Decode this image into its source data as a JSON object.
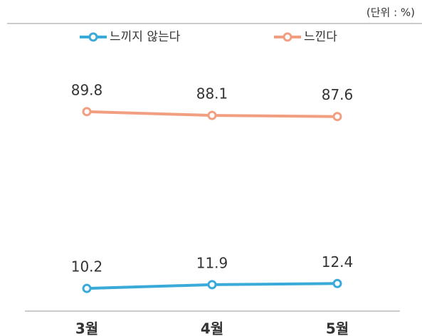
{
  "chart_data": {
    "type": "line",
    "unit_label": "(단위 : %)",
    "categories": [
      "3월",
      "4월",
      "5월"
    ],
    "series": [
      {
        "name": "느끼지 않는다",
        "color": "#3aaad8",
        "values": [
          10.2,
          11.9,
          12.4
        ]
      },
      {
        "name": "느낀다",
        "color": "#f29e80",
        "values": [
          89.8,
          88.1,
          87.6
        ]
      }
    ],
    "ylim": [
      0,
      100
    ]
  }
}
